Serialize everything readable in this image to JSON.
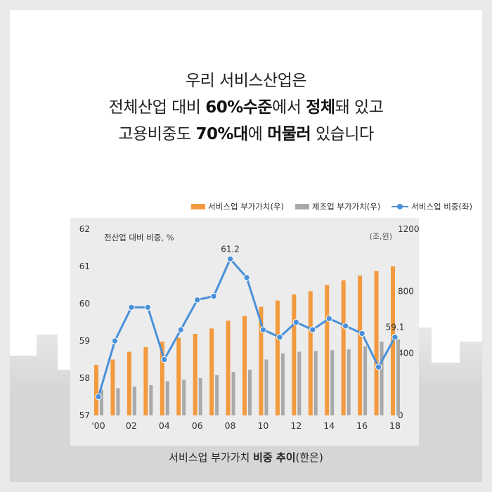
{
  "headline": {
    "line1": "우리 서비스산업은",
    "line2_a": "전체산업 대비 ",
    "line2_b": "60%수준",
    "line2_c": "에서 ",
    "line2_d": "정체",
    "line2_e": "돼 있고",
    "line3_a": "고용비중도 ",
    "line3_b": "70%대",
    "line3_c": "에 ",
    "line3_d": "머물러",
    "line3_e": " 있습니다"
  },
  "caption": {
    "a": "서비스업 부가가치 ",
    "b": "비중 추이",
    "c": "(한은)"
  },
  "chart_data": {
    "type": "bar",
    "x": [
      "2000",
      "2001",
      "2002",
      "2003",
      "2004",
      "2005",
      "2006",
      "2007",
      "2008",
      "2009",
      "2010",
      "2011",
      "2012",
      "2013",
      "2014",
      "2015",
      "2016",
      "2017",
      "2018"
    ],
    "x_tick_labels": [
      "'00",
      "",
      "02",
      "",
      "04",
      "",
      "06",
      "",
      "08",
      "",
      "10",
      "",
      "12",
      "",
      "14",
      "",
      "16",
      "",
      "18"
    ],
    "left_axis": {
      "label": "전산업 대비 비중, %",
      "min": 57,
      "max": 62,
      "ticks": [
        "57",
        "58",
        "59",
        "60",
        "61",
        "62"
      ]
    },
    "right_axis": {
      "label": "(조,원)",
      "min": 0,
      "max": 1200,
      "ticks": [
        "0",
        "400",
        "800",
        "1200"
      ]
    },
    "series": [
      {
        "name": "서비스업 부가가치(우)",
        "kind": "bar",
        "axis": "right",
        "color": "#f39a3e",
        "values": [
          325,
          360,
          410,
          440,
          475,
          500,
          525,
          560,
          610,
          640,
          700,
          740,
          780,
          800,
          840,
          870,
          900,
          930,
          960
        ]
      },
      {
        "name": "제조업 부가가치(우)",
        "kind": "bar",
        "axis": "right",
        "color": "#a9a9a9",
        "values": [
          165,
          175,
          185,
          195,
          220,
          230,
          240,
          260,
          280,
          295,
          360,
          400,
          410,
          415,
          420,
          425,
          445,
          475,
          490
        ]
      },
      {
        "name": "서비스업 비중(좌)",
        "kind": "line",
        "axis": "left",
        "color": "#4a90d9",
        "values": [
          57.5,
          59.0,
          59.9,
          59.9,
          58.5,
          59.3,
          60.1,
          60.2,
          61.2,
          60.7,
          59.3,
          59.1,
          59.5,
          59.3,
          59.6,
          59.4,
          59.2,
          58.3,
          59.1
        ]
      }
    ],
    "annotations": [
      {
        "index": 8,
        "series": 2,
        "text": "61.2"
      },
      {
        "index": 18,
        "series": 2,
        "text": "59.1"
      }
    ],
    "legend_position": "top-right",
    "grid": false
  }
}
